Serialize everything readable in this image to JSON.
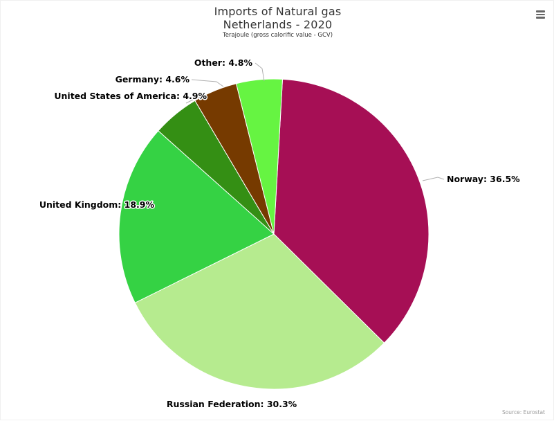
{
  "header": {
    "title_line1": "Imports of Natural gas",
    "title_line2": "Netherlands - 2020",
    "subtitle": "Terajoule (gross calorific value - GCV)"
  },
  "menu": {
    "icon": "hamburger-menu-icon"
  },
  "credits": {
    "text": "Source: Eurostat"
  },
  "chart_data": {
    "type": "pie",
    "title": "Imports of Natural gas Netherlands - 2020",
    "subtitle": "Terajoule (gross calorific value - GCV)",
    "unit": "%",
    "slices": [
      {
        "name": "Norway",
        "value": 36.5,
        "label": "Norway: 36.5%",
        "color": "#a60f55"
      },
      {
        "name": "Russian Federation",
        "value": 30.3,
        "label": "Russian Federation: 30.3%",
        "color": "#b6eb8f"
      },
      {
        "name": "United Kingdom",
        "value": 18.9,
        "label": "United Kingdom: 18.9%",
        "color": "#35d244"
      },
      {
        "name": "United States of America",
        "value": 4.9,
        "label": "United States of America: 4.9%",
        "color": "#348f14"
      },
      {
        "name": "Germany",
        "value": 4.6,
        "label": "Germany: 4.6%",
        "color": "#763a00"
      },
      {
        "name": "Other",
        "value": 4.8,
        "label": "Other: 4.8%",
        "color": "#66f442"
      }
    ]
  }
}
